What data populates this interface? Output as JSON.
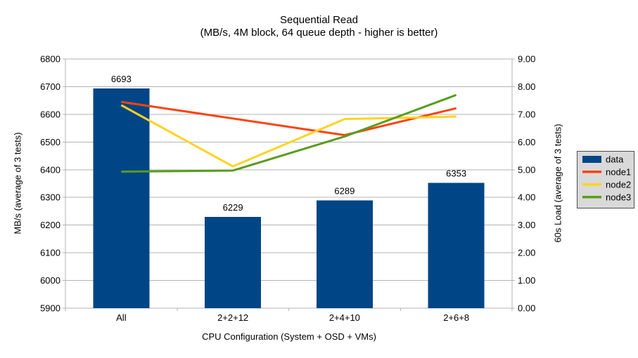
{
  "chart_data": {
    "type": "combo-bar-line",
    "title": "Sequential Read",
    "subtitle": "(MB/s, 4M block, 64 queue depth - higher is better)",
    "categories": [
      "All",
      "2+2+12",
      "2+4+10",
      "2+6+8"
    ],
    "bar_series": {
      "name": "data",
      "color": "#004586",
      "axis": "left",
      "values": [
        6693,
        6229,
        6289,
        6353
      ],
      "data_labels": [
        "6693",
        "6229",
        "6289",
        "6353"
      ]
    },
    "line_series": [
      {
        "name": "node1",
        "color": "#ff420e",
        "axis": "right",
        "values": [
          7.45,
          6.85,
          6.25,
          7.22
        ]
      },
      {
        "name": "node2",
        "color": "#ffd320",
        "axis": "right",
        "values": [
          7.33,
          5.12,
          6.83,
          6.92
        ]
      },
      {
        "name": "node3",
        "color": "#579d1c",
        "axis": "right",
        "values": [
          4.93,
          4.97,
          6.2,
          7.7
        ]
      }
    ],
    "left_axis": {
      "title": "MB/s (average of 3 tests)",
      "min": 5900,
      "max": 6800,
      "step": 100,
      "decimals": 0
    },
    "right_axis": {
      "title": "60s Load (average of 3 tests)",
      "min": 0,
      "max": 9,
      "step": 1,
      "decimals": 2
    },
    "x_axis": {
      "title": "CPU Configuration (System + OSD + VMs)"
    },
    "legend": {
      "position": "right",
      "background": "#d9d9d9",
      "border": "#4d4d4d",
      "entries": [
        {
          "label": "data",
          "color": "#004586",
          "swatch": "bar"
        },
        {
          "label": "node1",
          "color": "#ff420e",
          "swatch": "line"
        },
        {
          "label": "node2",
          "color": "#ffd320",
          "swatch": "line"
        },
        {
          "label": "node3",
          "color": "#579d1c",
          "swatch": "line"
        }
      ]
    },
    "grid": {
      "on": true,
      "color": "#b3b3b3"
    }
  }
}
